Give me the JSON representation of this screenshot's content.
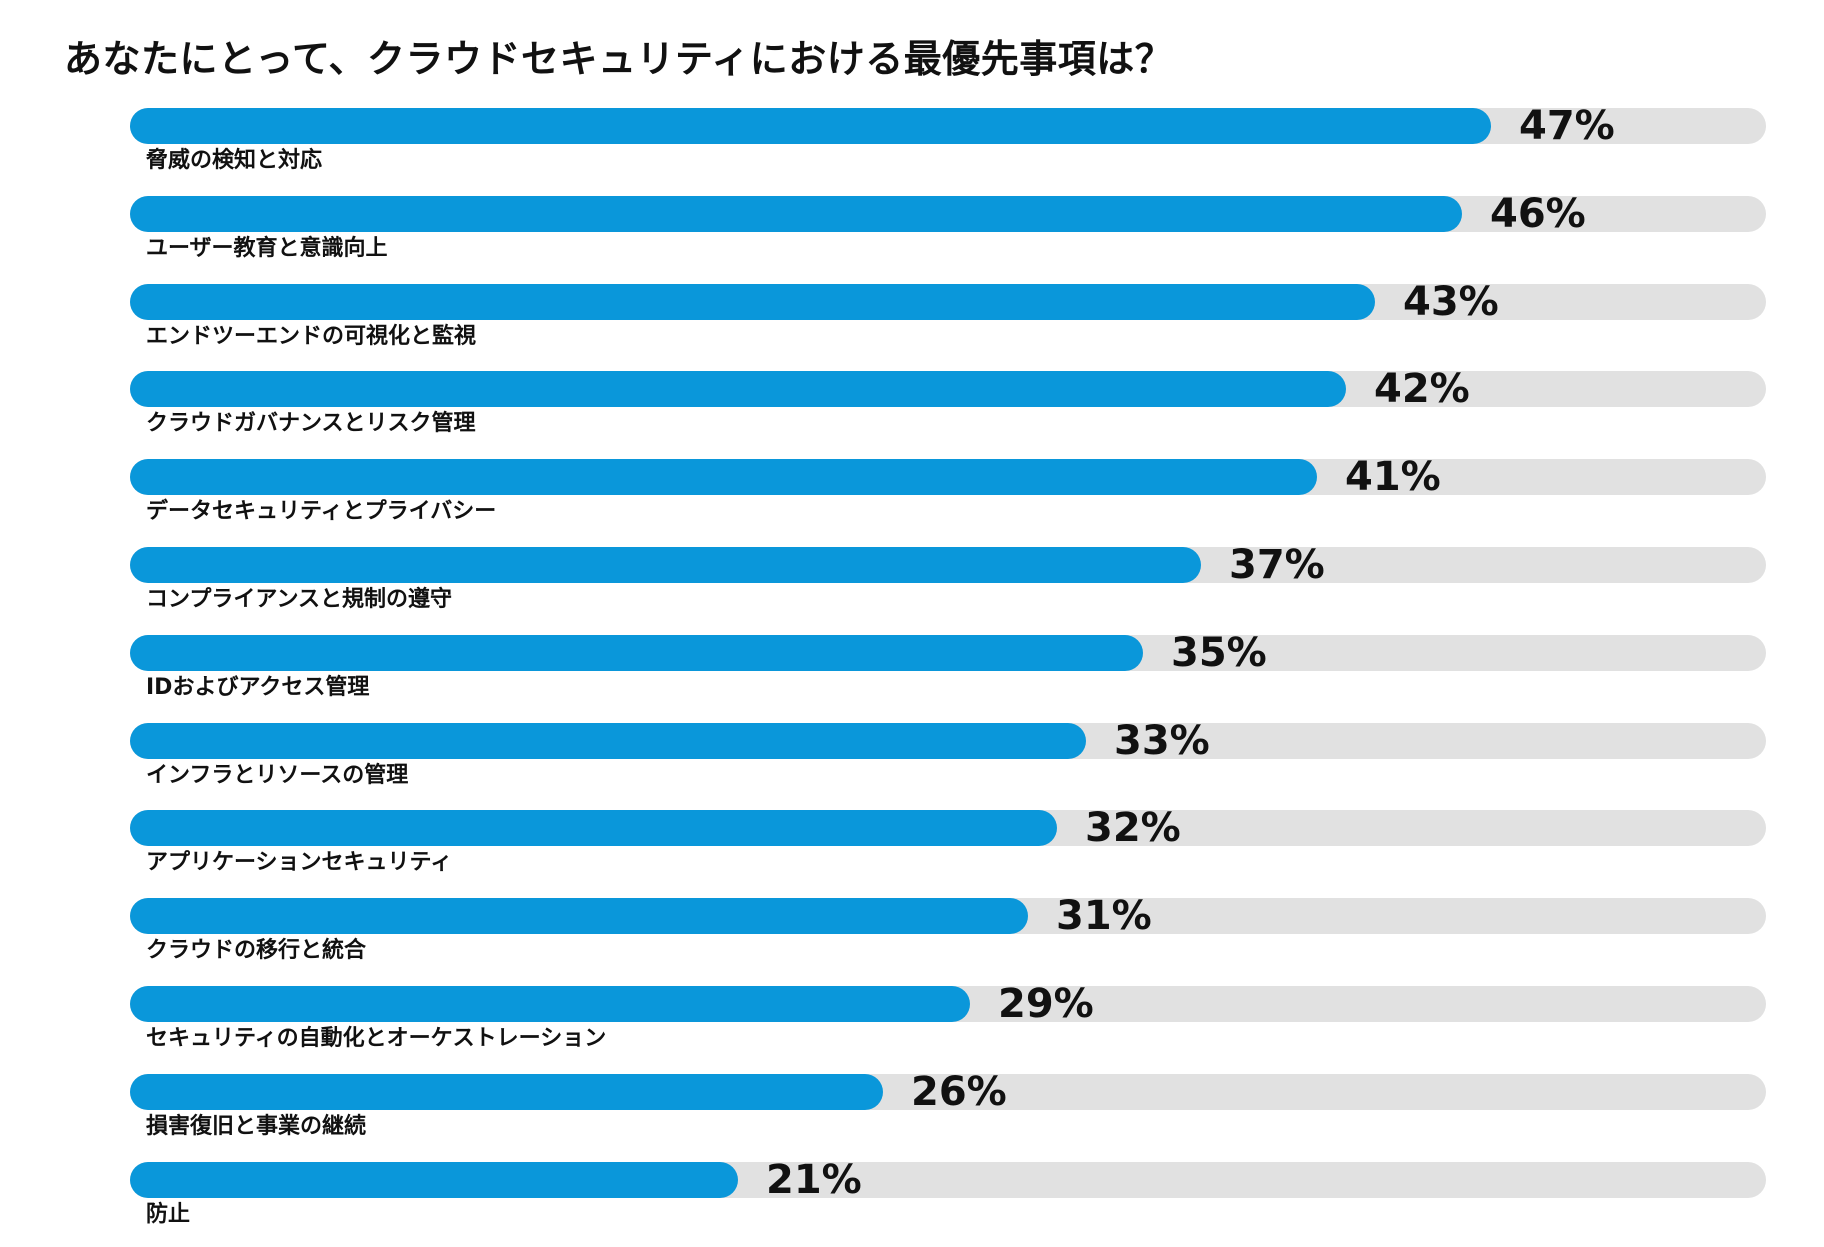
{
  "chart_data": {
    "type": "bar",
    "orientation": "horizontal",
    "title": "あなたにとって、クラウドセキュリティにおける最優先事項は？",
    "xlabel": "",
    "ylabel": "",
    "xlim": [
      0,
      100
    ],
    "value_suffix": "%",
    "colors": {
      "bar": "#0a97da",
      "track": "#e1e1e1"
    },
    "categories": [
      "脅威の検知と対応",
      "ユーザー教育と意識向上",
      "エンドツーエンドの可視化と監視",
      "クラウドガバナンスとリスク管理",
      "データセキュリティとプライバシー",
      "コンプライアンスと規制の遵守",
      "IDおよびアクセス管理",
      "インフラとリソースの管理",
      "アプリケーションセキュリティ",
      "クラウドの移行と統合",
      "セキュリティの自動化とオーケストレーション",
      "損害復旧と事業の継続",
      "防止"
    ],
    "values": [
      47,
      46,
      43,
      42,
      41,
      37,
      35,
      33,
      32,
      31,
      29,
      26,
      21
    ],
    "labels": [
      "47%",
      "46%",
      "43%",
      "42%",
      "41%",
      "37%",
      "35%",
      "33%",
      "32%",
      "31%",
      "29%",
      "26%",
      "21%"
    ]
  }
}
